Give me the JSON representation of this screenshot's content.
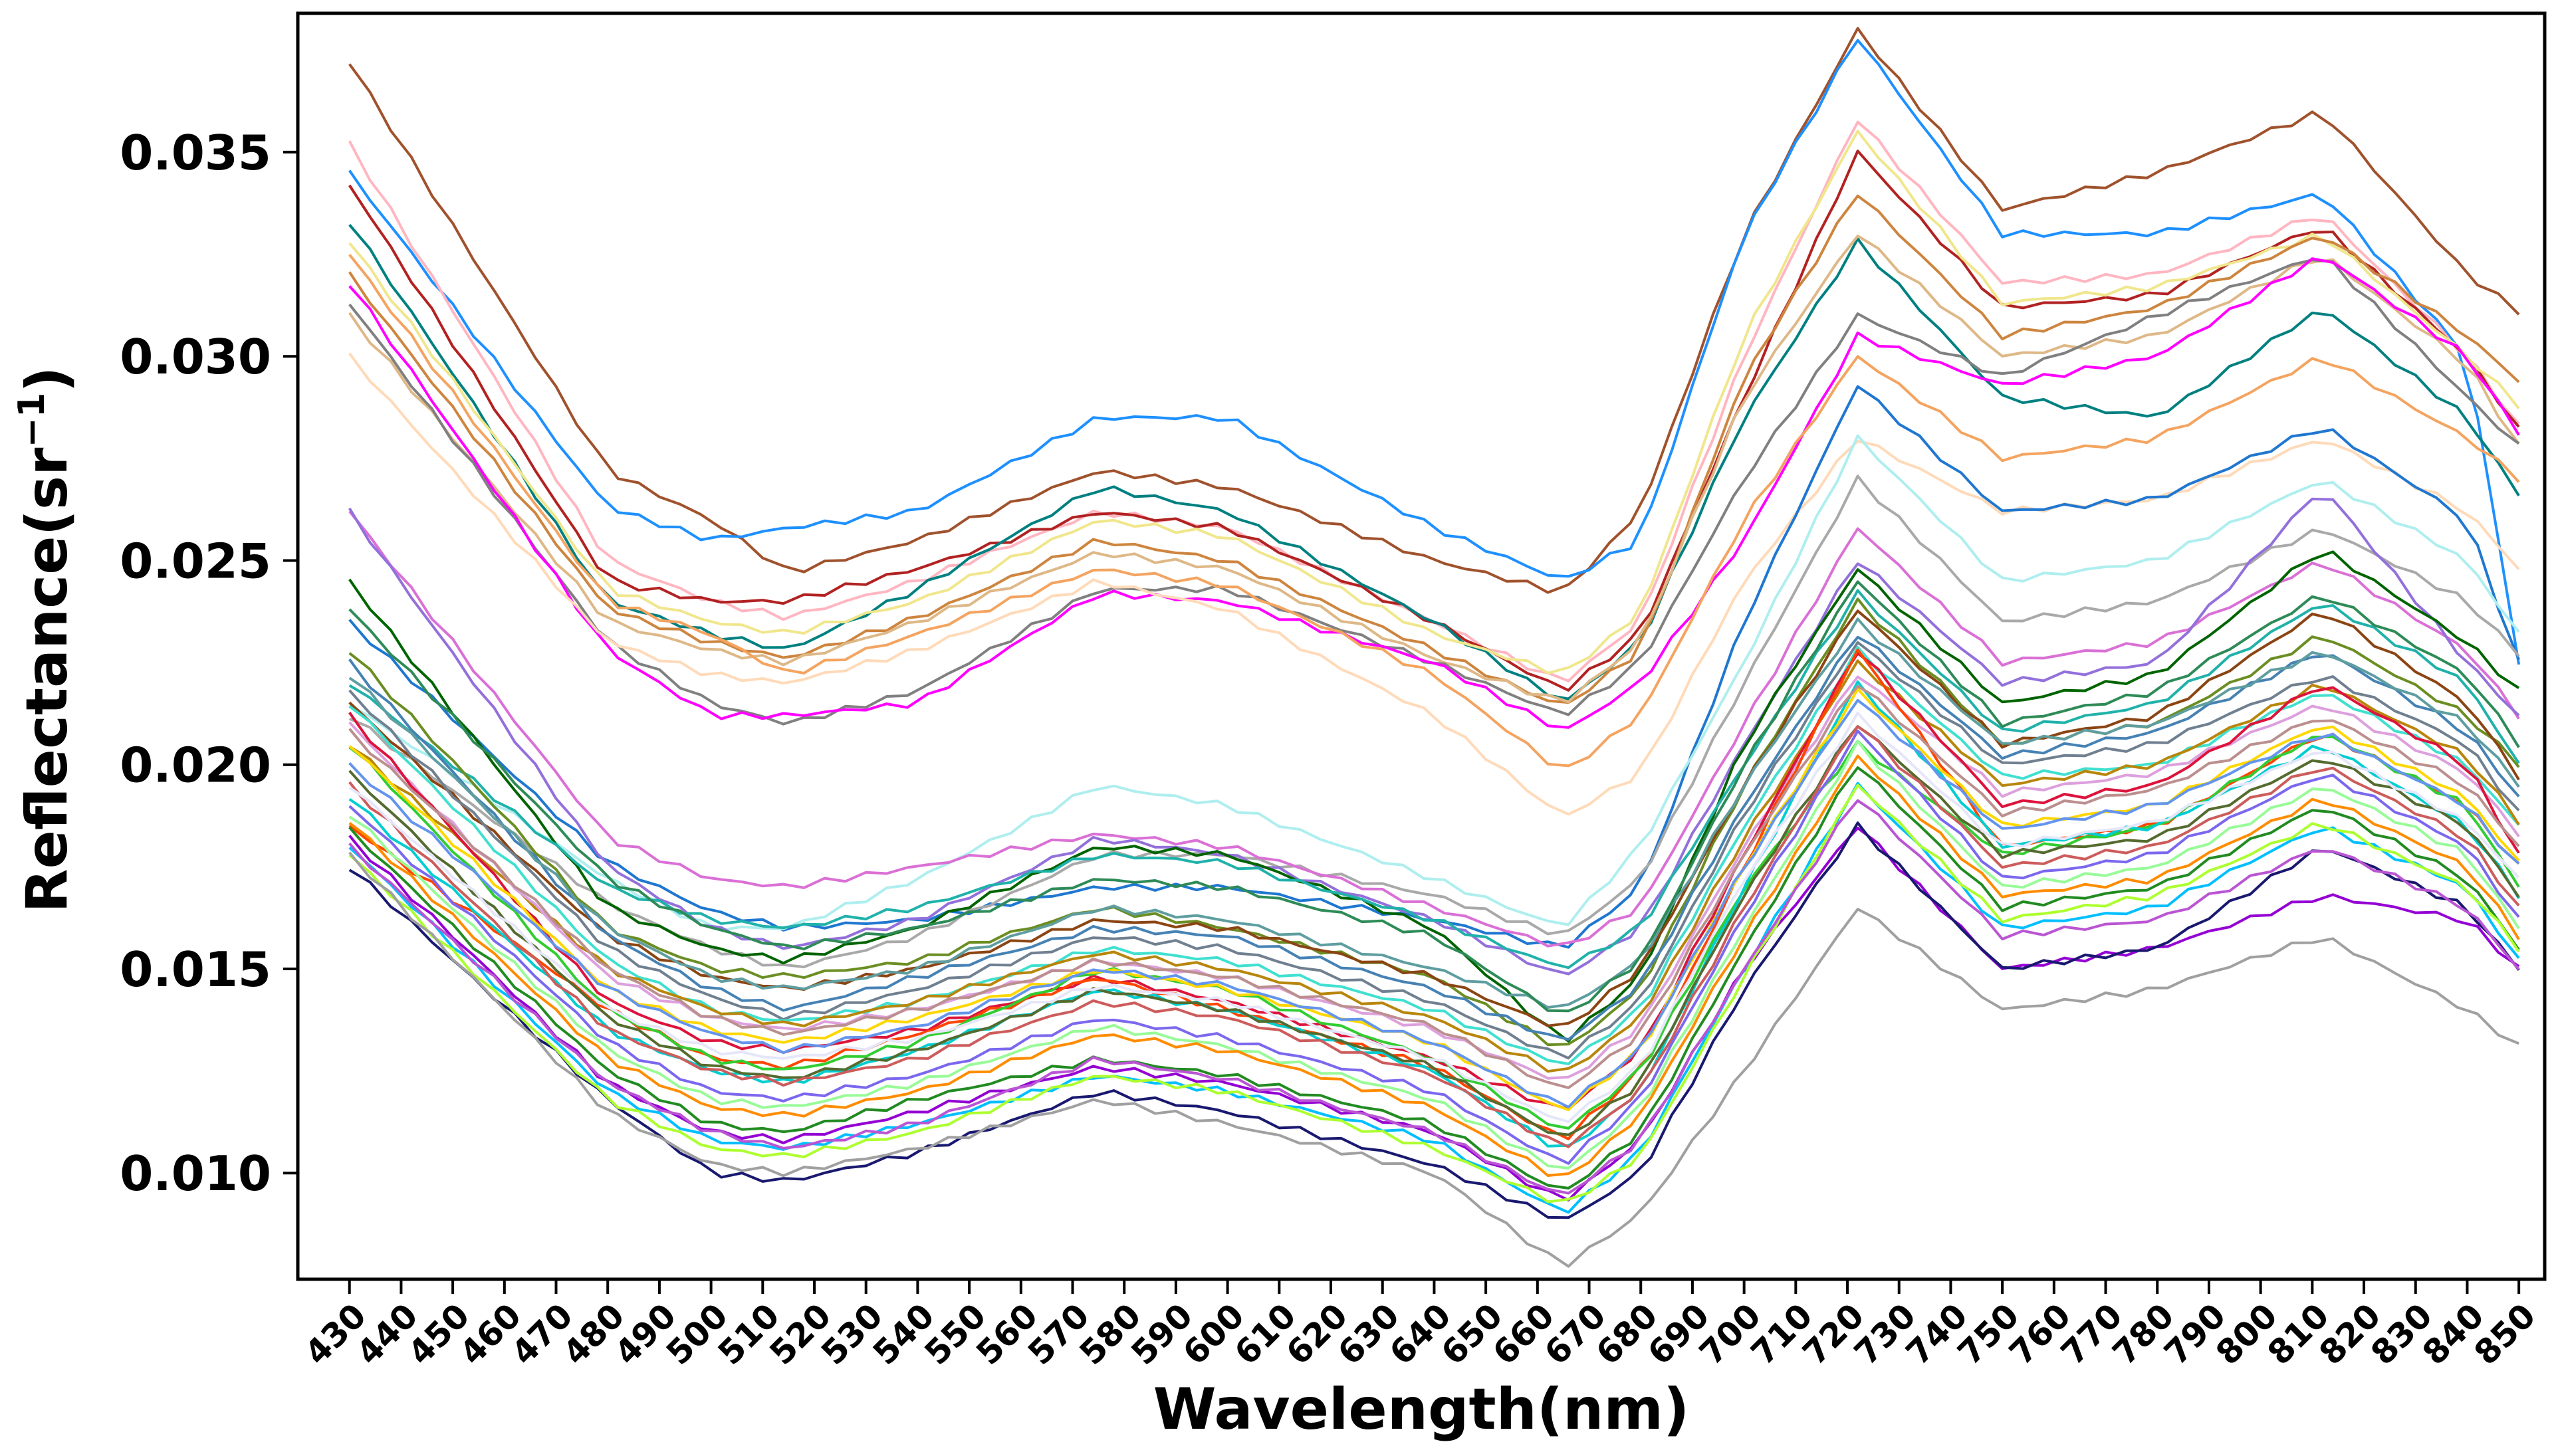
{
  "chart_data": {
    "type": "line",
    "title": "",
    "xlabel": "Wavelength(nm)",
    "ylabel_main": "Reflectance(sr",
    "ylabel_sup": "−1",
    "ylabel_close": ")",
    "xlim": [
      420,
      855
    ],
    "ylim": [
      0.0074,
      0.0384
    ],
    "x_ticks": [
      430,
      440,
      450,
      460,
      470,
      480,
      490,
      500,
      510,
      520,
      530,
      540,
      550,
      560,
      570,
      580,
      590,
      600,
      610,
      620,
      630,
      640,
      650,
      660,
      670,
      680,
      690,
      700,
      710,
      720,
      730,
      740,
      750,
      760,
      770,
      780,
      790,
      800,
      810,
      820,
      830,
      840,
      850
    ],
    "y_ticks": [
      0.01,
      0.015,
      0.02,
      0.025,
      0.03,
      0.035
    ],
    "y_tick_labels": [
      "0.010",
      "0.015",
      "0.020",
      "0.025",
      "0.030",
      "0.035"
    ],
    "grid": false,
    "legend": "none",
    "x_anchors": [
      430,
      480,
      500,
      515,
      540,
      575,
      600,
      640,
      665,
      680,
      700,
      722,
      750,
      780,
      812,
      840,
      850
    ],
    "series_note": "approximately 60 reflectance spectra; values at x_anchors, interpolated between",
    "series": [
      {
        "color": "#a0522d",
        "values": [
          0.0372,
          0.0272,
          0.026,
          0.0247,
          0.0255,
          0.0272,
          0.0268,
          0.025,
          0.0242,
          0.0262,
          0.033,
          0.038,
          0.0336,
          0.0345,
          0.036,
          0.032,
          0.0311
        ]
      },
      {
        "color": "#1e90ff",
        "values": [
          0.0345,
          0.0263,
          0.0255,
          0.0258,
          0.0262,
          0.0285,
          0.0285,
          0.0258,
          0.0245,
          0.0255,
          0.033,
          0.0378,
          0.033,
          0.033,
          0.034,
          0.03,
          0.0225
        ]
      },
      {
        "color": "#ffb6c1",
        "values": [
          0.0352,
          0.025,
          0.024,
          0.0236,
          0.0245,
          0.0262,
          0.0258,
          0.0235,
          0.022,
          0.0235,
          0.03,
          0.0358,
          0.0318,
          0.032,
          0.0335,
          0.03,
          0.0283
        ]
      },
      {
        "color": "#b22222",
        "values": [
          0.0342,
          0.0245,
          0.024,
          0.024,
          0.0248,
          0.0262,
          0.0258,
          0.0235,
          0.0218,
          0.0232,
          0.029,
          0.035,
          0.0312,
          0.0315,
          0.0332,
          0.03,
          0.0282
        ]
      },
      {
        "color": "#008080",
        "values": [
          0.0333,
          0.024,
          0.0232,
          0.0228,
          0.0243,
          0.0268,
          0.0262,
          0.0235,
          0.0215,
          0.023,
          0.0285,
          0.0328,
          0.029,
          0.0285,
          0.0312,
          0.0285,
          0.0266
        ]
      },
      {
        "color": "#f0e68c",
        "values": [
          0.0328,
          0.0243,
          0.0235,
          0.0232,
          0.024,
          0.026,
          0.0256,
          0.0232,
          0.0222,
          0.0237,
          0.0305,
          0.0355,
          0.0313,
          0.0317,
          0.033,
          0.03,
          0.0288
        ]
      },
      {
        "color": "#cd853f",
        "values": [
          0.032,
          0.0238,
          0.023,
          0.0226,
          0.0236,
          0.0255,
          0.025,
          0.0228,
          0.0214,
          0.0228,
          0.0295,
          0.034,
          0.0305,
          0.0312,
          0.033,
          0.0305,
          0.0294
        ]
      },
      {
        "color": "#deb887",
        "values": [
          0.031,
          0.0235,
          0.0228,
          0.0225,
          0.0235,
          0.0252,
          0.0248,
          0.0226,
          0.0215,
          0.023,
          0.029,
          0.033,
          0.03,
          0.0305,
          0.0325,
          0.0298,
          0.0278
        ]
      },
      {
        "color": "#808080",
        "values": [
          0.0313,
          0.023,
          0.0215,
          0.021,
          0.0218,
          0.0243,
          0.0243,
          0.0225,
          0.0212,
          0.0225,
          0.027,
          0.031,
          0.0295,
          0.031,
          0.0325,
          0.029,
          0.0278
        ]
      },
      {
        "color": "#ff00ff",
        "values": [
          0.0318,
          0.0228,
          0.0212,
          0.0212,
          0.0215,
          0.0242,
          0.024,
          0.0225,
          0.0208,
          0.022,
          0.0255,
          0.0305,
          0.0293,
          0.03,
          0.0325,
          0.03,
          0.0281
        ]
      },
      {
        "color": "#f4a460",
        "values": [
          0.0325,
          0.024,
          0.0232,
          0.0222,
          0.0232,
          0.0248,
          0.0244,
          0.0222,
          0.0198,
          0.0212,
          0.026,
          0.03,
          0.0275,
          0.028,
          0.03,
          0.028,
          0.027
        ]
      },
      {
        "color": "#ffdab9",
        "values": [
          0.03,
          0.023,
          0.0222,
          0.022,
          0.0228,
          0.0245,
          0.0238,
          0.0212,
          0.0187,
          0.0198,
          0.0245,
          0.028,
          0.0262,
          0.0265,
          0.028,
          0.0262,
          0.0248
        ]
      },
      {
        "color": "#1f77d0",
        "values": [
          0.0235,
          0.0176,
          0.0164,
          0.016,
          0.0162,
          0.017,
          0.017,
          0.0162,
          0.0155,
          0.017,
          0.0235,
          0.0293,
          0.0262,
          0.0265,
          0.0283,
          0.026,
          0.0225
        ]
      },
      {
        "color": "#afeeee",
        "values": [
          0.0215,
          0.0172,
          0.016,
          0.016,
          0.0172,
          0.0195,
          0.019,
          0.0172,
          0.016,
          0.018,
          0.0225,
          0.028,
          0.0245,
          0.025,
          0.027,
          0.025,
          0.0232
        ]
      },
      {
        "color": "#a9a9a9",
        "values": [
          0.0212,
          0.0166,
          0.0155,
          0.015,
          0.0158,
          0.0178,
          0.0178,
          0.0168,
          0.0158,
          0.0172,
          0.022,
          0.027,
          0.0235,
          0.024,
          0.0258,
          0.024,
          0.0227
        ]
      },
      {
        "color": "#da70d6",
        "values": [
          0.0262,
          0.0182,
          0.0172,
          0.017,
          0.0175,
          0.0183,
          0.018,
          0.0165,
          0.0155,
          0.0165,
          0.021,
          0.0258,
          0.0225,
          0.023,
          0.025,
          0.0228,
          0.0212
        ]
      },
      {
        "color": "#9370db",
        "values": [
          0.0262,
          0.0175,
          0.016,
          0.0155,
          0.0162,
          0.0182,
          0.0178,
          0.0162,
          0.0148,
          0.016,
          0.0205,
          0.025,
          0.022,
          0.0225,
          0.0268,
          0.0225,
          0.0212
        ]
      },
      {
        "color": "#006400",
        "values": [
          0.0245,
          0.0165,
          0.0155,
          0.0152,
          0.016,
          0.018,
          0.0178,
          0.016,
          0.0132,
          0.0148,
          0.0205,
          0.0248,
          0.0215,
          0.0222,
          0.0253,
          0.023,
          0.0218
        ]
      },
      {
        "color": "#20b2aa",
        "values": [
          0.022,
          0.017,
          0.0162,
          0.016,
          0.0165,
          0.0178,
          0.0176,
          0.0162,
          0.015,
          0.016,
          0.02,
          0.0242,
          0.0208,
          0.0215,
          0.024,
          0.022,
          0.02
        ]
      },
      {
        "color": "#6b8e23",
        "values": [
          0.0228,
          0.016,
          0.015,
          0.0148,
          0.0152,
          0.0165,
          0.016,
          0.0148,
          0.013,
          0.0145,
          0.0195,
          0.024,
          0.0205,
          0.021,
          0.0232,
          0.0212,
          0.02
        ]
      },
      {
        "color": "#8b4513",
        "values": [
          0.0215,
          0.0158,
          0.0148,
          0.0145,
          0.015,
          0.0162,
          0.016,
          0.0148,
          0.0135,
          0.015,
          0.0195,
          0.0238,
          0.0205,
          0.0212,
          0.0238,
          0.0215,
          0.0197
        ]
      },
      {
        "color": "#4682b4",
        "values": [
          0.0225,
          0.0158,
          0.0145,
          0.014,
          0.0148,
          0.016,
          0.0158,
          0.0145,
          0.0132,
          0.0146,
          0.019,
          0.0232,
          0.0202,
          0.0208,
          0.0228,
          0.0208,
          0.0192
        ]
      },
      {
        "color": "#708090",
        "values": [
          0.0218,
          0.0155,
          0.0143,
          0.0138,
          0.0145,
          0.0158,
          0.0155,
          0.0142,
          0.0128,
          0.0142,
          0.0188,
          0.023,
          0.02,
          0.0205,
          0.0222,
          0.0205,
          0.0188
        ]
      },
      {
        "color": "#40e0d0",
        "values": [
          0.0215,
          0.0152,
          0.014,
          0.0137,
          0.0142,
          0.0155,
          0.0152,
          0.014,
          0.0126,
          0.014,
          0.0185,
          0.0228,
          0.0197,
          0.02,
          0.0218,
          0.02,
          0.0185
        ]
      },
      {
        "color": "#b8860b",
        "values": [
          0.0205,
          0.015,
          0.014,
          0.0136,
          0.0142,
          0.0154,
          0.015,
          0.0138,
          0.0124,
          0.0138,
          0.0182,
          0.0225,
          0.0195,
          0.02,
          0.022,
          0.0202,
          0.0186
        ]
      },
      {
        "color": "#dda0dd",
        "values": [
          0.021,
          0.0148,
          0.0138,
          0.0135,
          0.014,
          0.0152,
          0.0148,
          0.0135,
          0.0122,
          0.0136,
          0.018,
          0.0222,
          0.0193,
          0.0198,
          0.0215,
          0.0198,
          0.0183
        ]
      },
      {
        "color": "#dc143c",
        "values": [
          0.0212,
          0.0142,
          0.0132,
          0.013,
          0.0135,
          0.0148,
          0.0142,
          0.0128,
          0.0115,
          0.013,
          0.0178,
          0.0228,
          0.019,
          0.0195,
          0.022,
          0.02,
          0.0178
        ]
      },
      {
        "color": "#ff4500",
        "values": [
          0.0185,
          0.014,
          0.0128,
          0.0126,
          0.0134,
          0.0148,
          0.014,
          0.0126,
          0.0108,
          0.0125,
          0.0175,
          0.0228,
          0.018,
          0.0185,
          0.0208,
          0.019,
          0.0175
        ]
      },
      {
        "color": "#32cd32",
        "values": [
          0.0205,
          0.014,
          0.0128,
          0.0125,
          0.0132,
          0.015,
          0.0145,
          0.0128,
          0.011,
          0.0125,
          0.017,
          0.0205,
          0.0178,
          0.0185,
          0.0208,
          0.019,
          0.017
        ]
      },
      {
        "color": "#00ced1",
        "values": [
          0.0192,
          0.0135,
          0.0125,
          0.0122,
          0.013,
          0.0145,
          0.014,
          0.0125,
          0.0105,
          0.012,
          0.017,
          0.022,
          0.018,
          0.0185,
          0.0205,
          0.0185,
          0.0168
        ]
      },
      {
        "color": "#556b2f",
        "values": [
          0.0198,
          0.0138,
          0.0126,
          0.0123,
          0.013,
          0.0145,
          0.014,
          0.0126,
          0.0108,
          0.0122,
          0.0168,
          0.021,
          0.0178,
          0.0182,
          0.0202,
          0.0185,
          0.0168
        ]
      },
      {
        "color": "#cd5c5c",
        "values": [
          0.0195,
          0.0135,
          0.0125,
          0.0122,
          0.0128,
          0.0142,
          0.0138,
          0.0124,
          0.0106,
          0.012,
          0.0165,
          0.021,
          0.0175,
          0.018,
          0.02,
          0.0182,
          0.0165
        ]
      },
      {
        "color": "#7b68ee",
        "values": [
          0.019,
          0.0132,
          0.012,
          0.0118,
          0.0124,
          0.0138,
          0.0133,
          0.012,
          0.0102,
          0.0118,
          0.0163,
          0.0208,
          0.0172,
          0.0178,
          0.0198,
          0.018,
          0.0162
        ]
      },
      {
        "color": "#98fb98",
        "values": [
          0.0188,
          0.013,
          0.0118,
          0.0116,
          0.0122,
          0.0136,
          0.0131,
          0.0118,
          0.01,
          0.0116,
          0.016,
          0.0205,
          0.017,
          0.0175,
          0.0195,
          0.0178,
          0.016
        ]
      },
      {
        "color": "#ff8c00",
        "values": [
          0.0186,
          0.0128,
          0.0116,
          0.0114,
          0.012,
          0.0134,
          0.013,
          0.0116,
          0.0098,
          0.0114,
          0.0158,
          0.0202,
          0.0168,
          0.0172,
          0.0192,
          0.0175,
          0.0158
        ]
      },
      {
        "color": "#228b22",
        "values": [
          0.0184,
          0.0125,
          0.0112,
          0.011,
          0.0118,
          0.0128,
          0.0124,
          0.0112,
          0.0095,
          0.011,
          0.0155,
          0.02,
          0.0165,
          0.017,
          0.019,
          0.0172,
          0.0155
        ]
      },
      {
        "color": "#9400d3",
        "values": [
          0.0182,
          0.0122,
          0.011,
          0.0108,
          0.0115,
          0.0126,
          0.0122,
          0.011,
          0.0093,
          0.0108,
          0.015,
          0.0185,
          0.015,
          0.0155,
          0.0168,
          0.0162,
          0.015
        ]
      },
      {
        "color": "#00bfff",
        "values": [
          0.018,
          0.012,
          0.0108,
          0.0106,
          0.0112,
          0.0124,
          0.012,
          0.0108,
          0.009,
          0.0105,
          0.015,
          0.0195,
          0.016,
          0.0165,
          0.0185,
          0.017,
          0.0152
        ]
      },
      {
        "color": "#191970",
        "values": [
          0.0175,
          0.0118,
          0.01,
          0.0098,
          0.0105,
          0.012,
          0.0115,
          0.0102,
          0.0088,
          0.01,
          0.0145,
          0.0185,
          0.015,
          0.0155,
          0.018,
          0.0165,
          0.015
        ]
      },
      {
        "color": "#adff2f",
        "values": [
          0.0178,
          0.0118,
          0.0106,
          0.0104,
          0.011,
          0.0124,
          0.012,
          0.0106,
          0.0092,
          0.0104,
          0.0148,
          0.0195,
          0.0162,
          0.0168,
          0.0186,
          0.017,
          0.0155
        ]
      },
      {
        "color": "#ba55d3",
        "values": [
          0.018,
          0.0122,
          0.011,
          0.0106,
          0.0112,
          0.0128,
          0.0123,
          0.011,
          0.0094,
          0.0108,
          0.015,
          0.0192,
          0.0158,
          0.0162,
          0.018,
          0.0165,
          0.015
        ]
      },
      {
        "color": "#a0a0a0",
        "values": [
          0.0178,
          0.0115,
          0.0102,
          0.01,
          0.0106,
          0.0118,
          0.0112,
          0.01,
          0.0077,
          0.009,
          0.0125,
          0.0165,
          0.014,
          0.0145,
          0.0158,
          0.014,
          0.0131
        ]
      },
      {
        "color": "#ffd700",
        "values": [
          0.0205,
          0.0145,
          0.0135,
          0.0132,
          0.0138,
          0.015,
          0.0145,
          0.0132,
          0.0115,
          0.013,
          0.0175,
          0.0218,
          0.0185,
          0.019,
          0.021,
          0.0192,
          0.0176
        ]
      },
      {
        "color": "#5f9ea0",
        "values": [
          0.0222,
          0.016,
          0.0148,
          0.0145,
          0.015,
          0.0165,
          0.0162,
          0.015,
          0.014,
          0.0152,
          0.0195,
          0.0235,
          0.0205,
          0.021,
          0.0228,
          0.021,
          0.0195
        ]
      },
      {
        "color": "#2e8b57",
        "values": [
          0.0238,
          0.0172,
          0.016,
          0.0155,
          0.016,
          0.0172,
          0.017,
          0.0158,
          0.0138,
          0.0152,
          0.02,
          0.0245,
          0.021,
          0.0218,
          0.0242,
          0.0222,
          0.0205
        ]
      },
      {
        "color": "#bc8f8f",
        "values": [
          0.0208,
          0.015,
          0.0138,
          0.0134,
          0.014,
          0.0152,
          0.0148,
          0.0136,
          0.012,
          0.0134,
          0.0178,
          0.022,
          0.0188,
          0.0194,
          0.0212,
          0.0195,
          0.018
        ]
      },
      {
        "color": "#6495ed",
        "values": [
          0.02,
          0.0145,
          0.0134,
          0.013,
          0.0136,
          0.015,
          0.0146,
          0.0132,
          0.0116,
          0.013,
          0.0175,
          0.0216,
          0.0184,
          0.019,
          0.0208,
          0.019,
          0.0175
        ]
      },
      {
        "color": "#e6e6fa",
        "values": [
          0.0195,
          0.014,
          0.013,
          0.0128,
          0.0133,
          0.0146,
          0.0142,
          0.0128,
          0.0112,
          0.0126,
          0.0172,
          0.0212,
          0.018,
          0.0186,
          0.0204,
          0.0186,
          0.0172
        ]
      }
    ]
  }
}
